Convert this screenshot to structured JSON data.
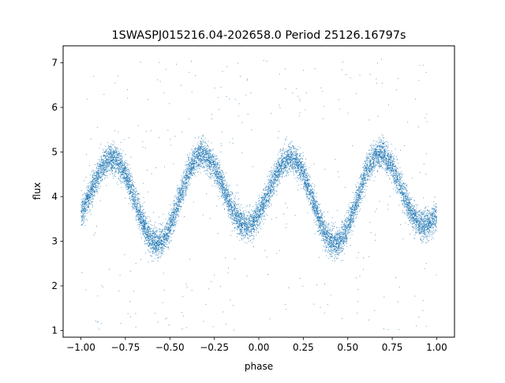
{
  "chart_data": {
    "type": "scatter",
    "title": "1SWASPJ015216.04-202658.0 Period 25126.16797s",
    "xlabel": "phase",
    "ylabel": "flux",
    "xlim": [
      -1.1,
      1.1
    ],
    "ylim": [
      0.85,
      7.38
    ],
    "x_ticks": [
      -1.0,
      -0.75,
      -0.5,
      -0.25,
      0.0,
      0.25,
      0.5,
      0.75,
      1.0
    ],
    "x_tick_labels": [
      "−1.00",
      "−0.75",
      "−0.50",
      "−0.25",
      "0.00",
      "0.25",
      "0.50",
      "0.75",
      "1.00"
    ],
    "y_ticks": [
      1,
      2,
      3,
      4,
      5,
      6,
      7
    ],
    "y_tick_labels": [
      "1",
      "2",
      "3",
      "4",
      "5",
      "6",
      "7"
    ],
    "grid": false,
    "legend": "none",
    "marker_color": "#1f77b4",
    "series": [
      {
        "x_range": [
          -1.0,
          1.0
        ],
        "point_count": 12000,
        "period_phase": 1.0,
        "maxima": [
          {
            "phase": -0.82,
            "flux": 4.85
          },
          {
            "phase": -0.32,
            "flux": 4.95
          },
          {
            "phase": 0.18,
            "flux": 4.85
          },
          {
            "phase": 0.68,
            "flux": 4.95
          }
        ],
        "minima": [
          {
            "phase": -0.57,
            "flux": 2.95
          },
          {
            "phase": -0.07,
            "flux": 3.35
          },
          {
            "phase": 0.43,
            "flux": 2.95
          },
          {
            "phase": 0.93,
            "flux": 3.35
          }
        ],
        "scatter_sigma": 0.16,
        "outlier_fraction": 0.03,
        "outlier_range": [
          1.0,
          7.1
        ]
      }
    ]
  }
}
